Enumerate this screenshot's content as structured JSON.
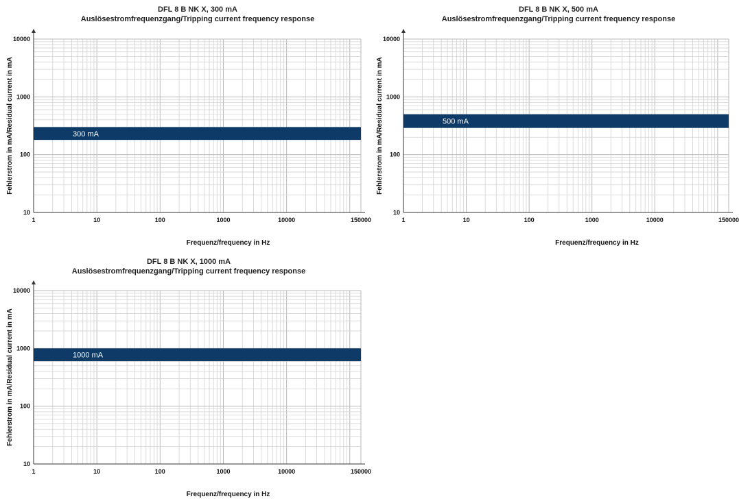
{
  "figure_title": "DFL 8 B NK X",
  "chart_data": [
    {
      "type": "area",
      "title": "DFL 8 B NK X, 300 mA",
      "subtitle": "Auslösestromfrequenzgang/Tripping current frequency response",
      "xlabel": "Frequenz/frequency in Hz",
      "ylabel": "Fehlerstrom in mA/Residual current in mA",
      "x_scale": "log",
      "y_scale": "log",
      "xlim": [
        1,
        150000
      ],
      "ylim": [
        10,
        10000
      ],
      "x_ticks": [
        "1",
        "10",
        "100",
        "1000",
        "10000",
        "150000"
      ],
      "y_ticks": [
        "10",
        "100",
        "1000",
        "10000"
      ],
      "grid": true,
      "band_color": "#0d3a66",
      "series": [
        {
          "name": "300 mA",
          "x": [
            1,
            150000
          ],
          "y_low": [
            180,
            180
          ],
          "y_high": [
            300,
            300
          ]
        }
      ]
    },
    {
      "type": "area",
      "title": "DFL 8 B NK X, 500 mA",
      "subtitle": "Auslösestromfrequenzgang/Tripping current frequency response",
      "xlabel": "Frequenz/frequency in Hz",
      "ylabel": "Fehlerstrom in mA/Residual current in mA",
      "x_scale": "log",
      "y_scale": "log",
      "xlim": [
        1,
        150000
      ],
      "ylim": [
        10,
        10000
      ],
      "x_ticks": [
        "1",
        "10",
        "100",
        "1000",
        "10000",
        "150000"
      ],
      "y_ticks": [
        "10",
        "100",
        "1000",
        "10000"
      ],
      "grid": true,
      "band_color": "#0d3a66",
      "series": [
        {
          "name": "500 mA",
          "x": [
            1,
            150000
          ],
          "y_low": [
            290,
            290
          ],
          "y_high": [
            500,
            500
          ]
        }
      ]
    },
    {
      "type": "area",
      "title": "DFL 8 B NK X, 1000 mA",
      "subtitle": "Auslösestromfrequenzgang/Tripping current frequency response",
      "xlabel": "Frequenz/frequency in Hz",
      "ylabel": "Fehlerstrom in mA/Residual current in mA",
      "x_scale": "log",
      "y_scale": "log",
      "xlim": [
        1,
        150000
      ],
      "ylim": [
        10,
        10000
      ],
      "x_ticks": [
        "1",
        "10",
        "100",
        "1000",
        "10000",
        "150000"
      ],
      "y_ticks": [
        "10",
        "100",
        "1000",
        "10000"
      ],
      "grid": true,
      "band_color": "#0d3a66",
      "series": [
        {
          "name": "1000 mA",
          "x": [
            1,
            150000
          ],
          "y_low": [
            600,
            600
          ],
          "y_high": [
            1000,
            1000
          ]
        }
      ]
    }
  ]
}
